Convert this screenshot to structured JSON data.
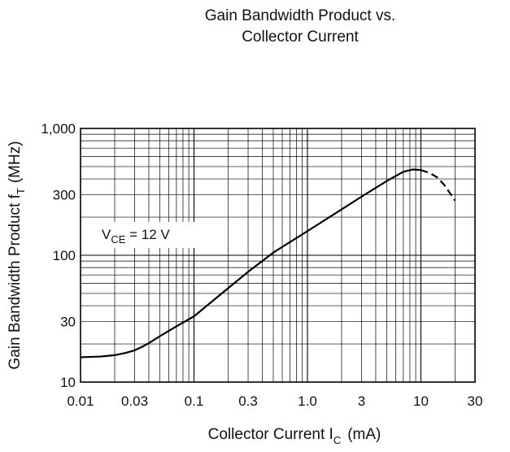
{
  "chart_data": {
    "type": "line",
    "title_line1": "Gain Bandwidth Product vs.",
    "title_line2": "Collector Current",
    "xlabel": {
      "main": "Collector Current  I",
      "sub": "C",
      "unit": "(mA)"
    },
    "ylabel": {
      "main": "Gain Bandwidth Product  f",
      "sub": "T",
      "unit": "(MHz)"
    },
    "x_scale": "log",
    "y_scale": "log",
    "xlim": [
      0.01,
      30
    ],
    "ylim": [
      10,
      1000
    ],
    "grid": true,
    "x_ticks": [
      {
        "value": 0.01,
        "label": "0.01"
      },
      {
        "value": 0.03,
        "label": "0.03"
      },
      {
        "value": 0.1,
        "label": "0.1"
      },
      {
        "value": 0.3,
        "label": "0.3"
      },
      {
        "value": 1.0,
        "label": "1.0"
      },
      {
        "value": 3,
        "label": "3"
      },
      {
        "value": 10,
        "label": "10"
      },
      {
        "value": 30,
        "label": "30"
      }
    ],
    "y_ticks": [
      {
        "value": 10,
        "label": "10"
      },
      {
        "value": 30,
        "label": "30"
      },
      {
        "value": 100,
        "label": "100"
      },
      {
        "value": 300,
        "label": "300"
      },
      {
        "value": 1000,
        "label": "1,000"
      }
    ],
    "annotation": {
      "main": "V",
      "sub": "CE",
      "rest": " = 12 V"
    },
    "series": [
      {
        "style": "solid",
        "x": [
          0.01,
          0.015,
          0.02,
          0.025,
          0.03,
          0.035,
          0.04,
          0.05,
          0.07,
          0.1,
          0.2,
          0.3,
          0.5,
          1.0,
          2.0,
          3.0,
          5.0,
          7.0,
          8.5,
          10.0
        ],
        "y": [
          15.7,
          15.9,
          16.3,
          17.0,
          17.8,
          19.0,
          20.3,
          23.0,
          27.5,
          33.0,
          55,
          74,
          105,
          155,
          230,
          290,
          385,
          455,
          475,
          470
        ]
      },
      {
        "style": "dashed",
        "x": [
          10.0,
          12.0,
          14.0,
          16.0,
          18.0,
          20.0
        ],
        "y": [
          470,
          445,
          410,
          360,
          310,
          270
        ]
      }
    ]
  }
}
